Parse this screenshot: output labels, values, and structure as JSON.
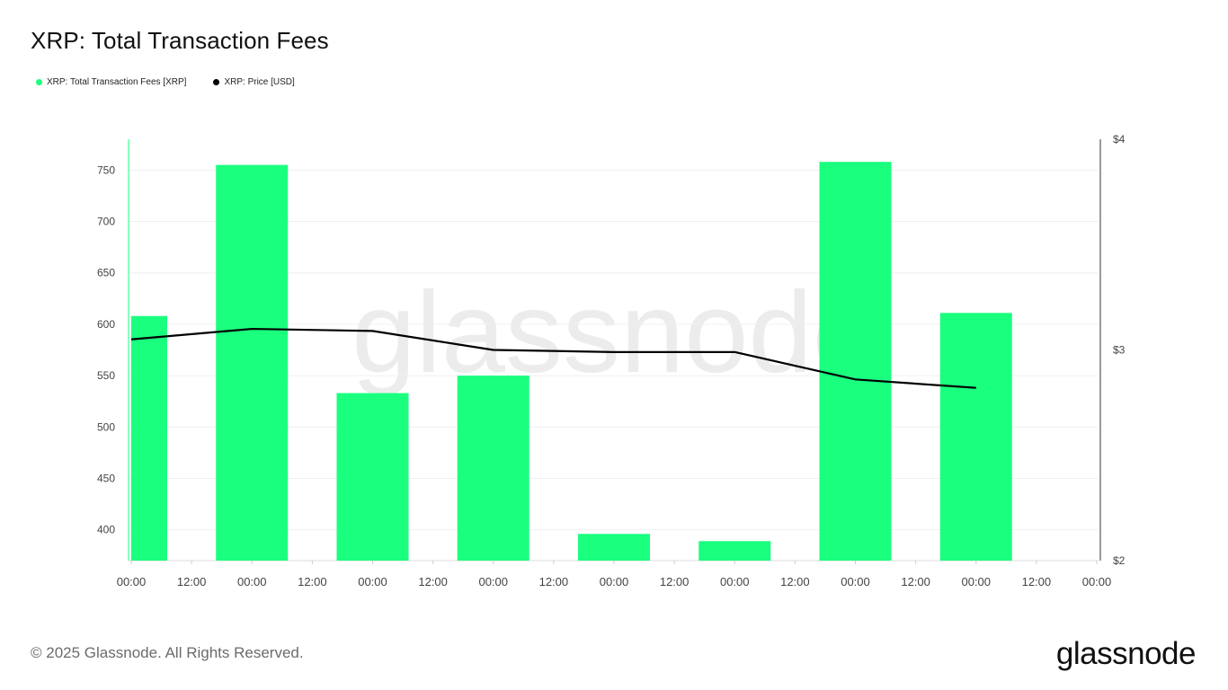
{
  "title": "XRP: Total Transaction Fees",
  "legend": {
    "fees": {
      "label": "XRP: Total Transaction Fees [XRP]",
      "color": "#1aff7e"
    },
    "price": {
      "label": "XRP: Price [USD]",
      "color": "#000000"
    }
  },
  "watermark": "glassnode",
  "footer": "© 2025 Glassnode. All Rights Reserved.",
  "brand": "glassnode",
  "chart_data": {
    "type": "bar",
    "x_ticks": [
      "00:00",
      "12:00",
      "00:00",
      "12:00",
      "00:00",
      "12:00",
      "00:00",
      "12:00",
      "00:00",
      "12:00",
      "00:00",
      "12:00",
      "00:00",
      "12:00",
      "00:00",
      "12:00",
      "00:00"
    ],
    "series": [
      {
        "name": "XRP: Total Transaction Fees [XRP]",
        "type": "bar",
        "axis": "left",
        "color": "#1aff7e",
        "values": [
          608,
          755,
          533,
          550,
          396,
          389,
          758,
          611
        ]
      },
      {
        "name": "XRP: Price [USD]",
        "type": "line",
        "axis": "right",
        "color": "#000000",
        "values": [
          3.05,
          3.1,
          3.09,
          3.0,
          2.99,
          2.99,
          2.86,
          2.82
        ]
      }
    ],
    "left_axis": {
      "ylim": [
        370,
        780
      ],
      "ticks": [
        400,
        450,
        500,
        550,
        600,
        650,
        700,
        750
      ]
    },
    "right_axis": {
      "ylim": [
        2,
        4
      ],
      "ticks": [
        "$2",
        "$3",
        "$4"
      ]
    },
    "grid": true,
    "legend_position": "top-left"
  }
}
